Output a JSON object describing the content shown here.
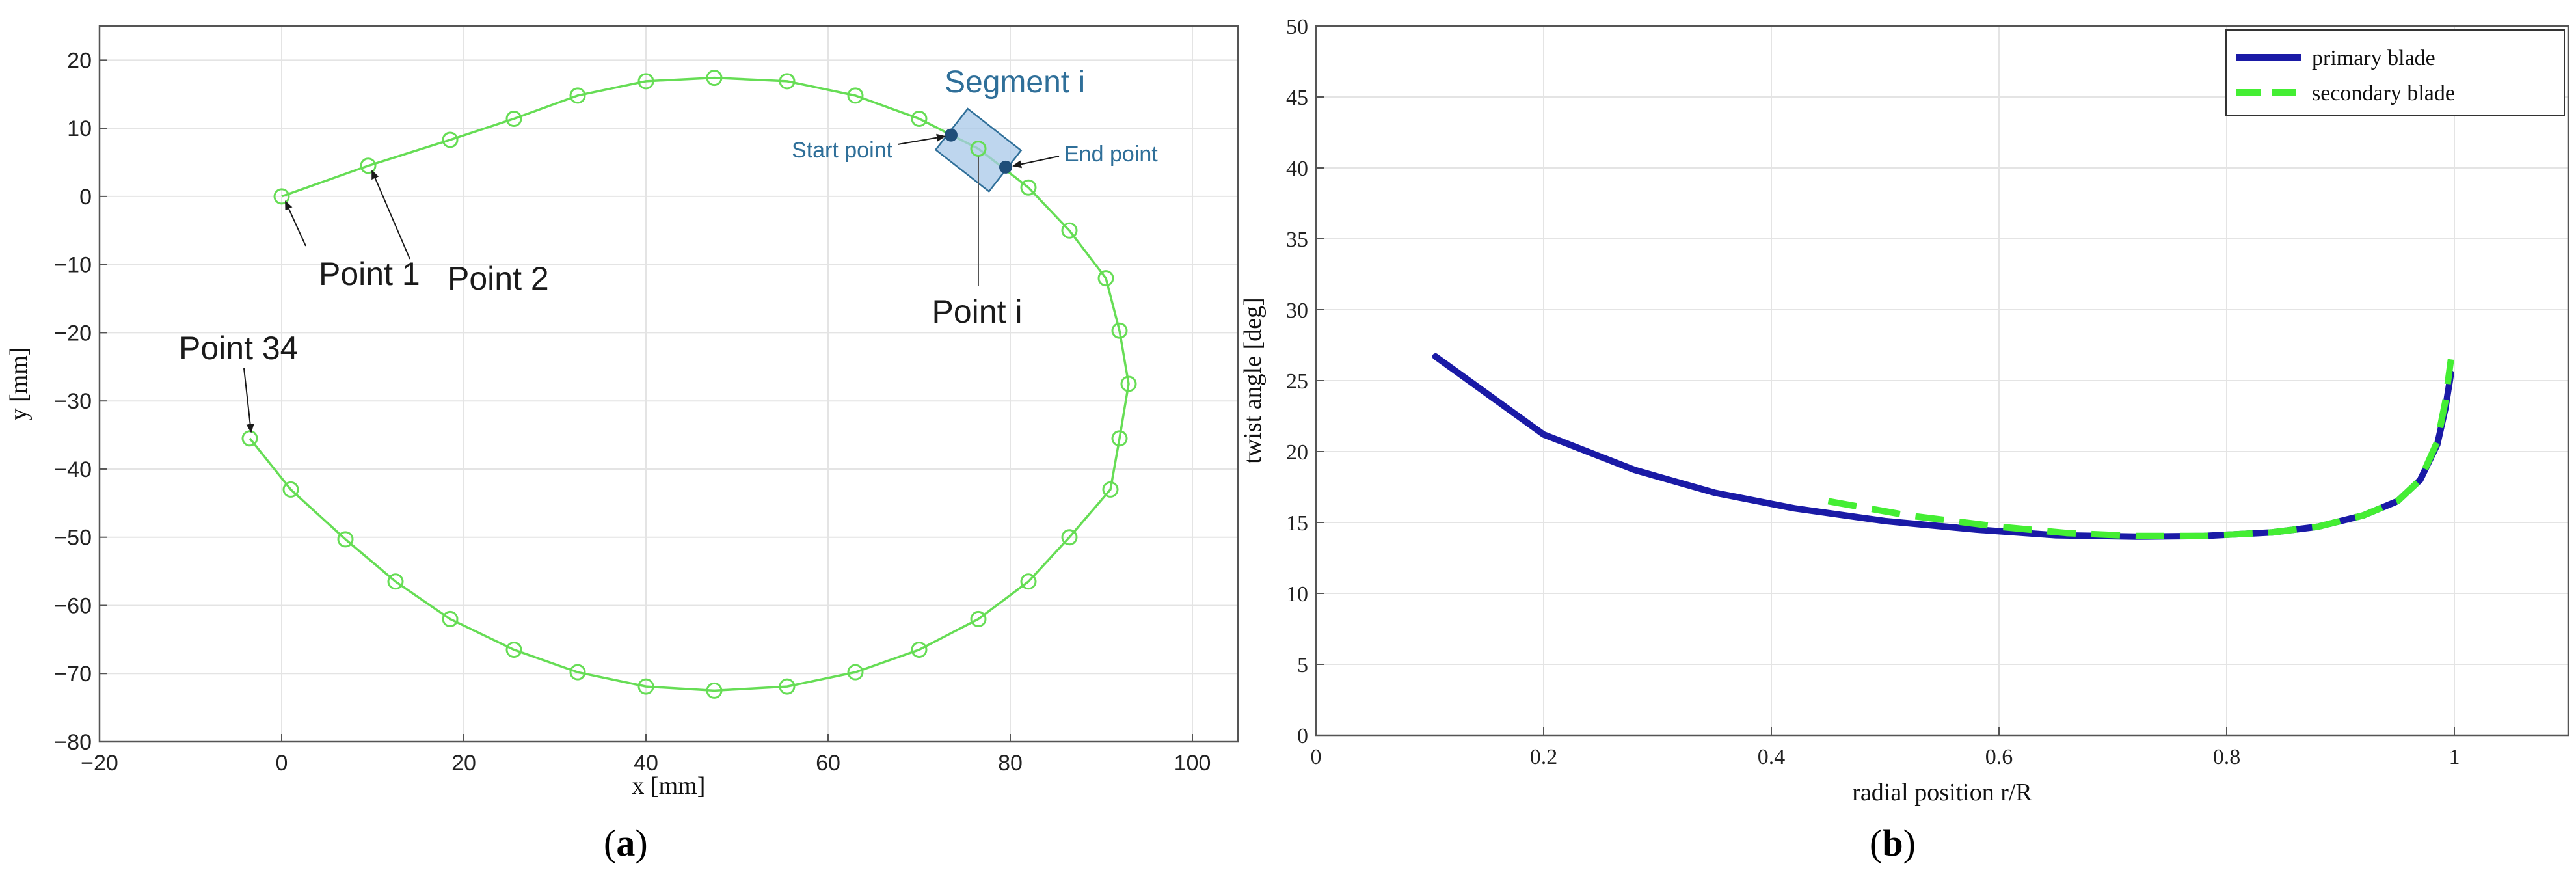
{
  "colors": {
    "curve": "#66dd55",
    "primary": "#1a1aa6",
    "secondary": "#44ee33",
    "annotation_blue": "#2f6f99",
    "segment_fill": "#a8c8e8",
    "grid": "#e4e4e4"
  },
  "panels": {
    "a": {
      "label": "a"
    },
    "b": {
      "label": "b"
    }
  },
  "chart_data": [
    {
      "type": "line",
      "panel": "a",
      "title": "",
      "xlabel": "x [mm]",
      "ylabel": "y [mm]",
      "xlim": [
        -20,
        105
      ],
      "ylim": [
        -80,
        25
      ],
      "xticks": [
        -20,
        0,
        20,
        40,
        60,
        80,
        100
      ],
      "yticks": [
        -80,
        -70,
        -60,
        -50,
        -40,
        -30,
        -20,
        -10,
        0,
        10,
        20
      ],
      "xtick_labels": [
        "−20",
        "0",
        "20",
        "40",
        "60",
        "80",
        "100"
      ],
      "ytick_labels": [
        "−80",
        "−70",
        "−60",
        "−50",
        "−40",
        "−30",
        "−20",
        "−10",
        "0",
        "10",
        "20"
      ],
      "grid": true,
      "markers": "open-circle",
      "x": [
        0,
        9.5,
        18.5,
        25.5,
        32.5,
        40,
        47.5,
        55.5,
        63,
        70,
        76.5,
        82,
        86.5,
        90.5,
        92,
        93,
        92,
        91,
        86.5,
        82,
        76.5,
        70,
        63,
        55.5,
        47.5,
        40,
        32.5,
        25.5,
        18.5,
        12.5,
        7,
        1,
        -3.5
      ],
      "y": [
        0,
        4.5,
        8.3,
        11.4,
        14.8,
        16.9,
        17.4,
        16.9,
        14.8,
        11.4,
        7,
        1.3,
        -5,
        -12,
        -19.7,
        -27.5,
        -35.5,
        -43,
        -50,
        -56.5,
        -62,
        -66.5,
        -69.8,
        -71.9,
        -72.5,
        -71.9,
        -69.8,
        -66.5,
        -62,
        -56.5,
        -50.3,
        -43,
        -35.5
      ],
      "annotations": [
        {
          "text": "Point 1",
          "x": 0,
          "y": 0
        },
        {
          "text": "Point 2",
          "x": 9.5,
          "y": 4.5
        },
        {
          "text": "Point 34",
          "x": -3.5,
          "y": -35.5
        },
        {
          "text": "Point i",
          "x": 76.5,
          "y": 7
        },
        {
          "text": "Segment i"
        },
        {
          "text": "Start point",
          "x": 73.5,
          "y": 9
        },
        {
          "text": "End point",
          "x": 79.5,
          "y": 4.3
        }
      ]
    },
    {
      "type": "line",
      "panel": "b",
      "title": "",
      "xlabel": "radial position r/R",
      "ylabel": "twist angle [deg]",
      "xlim": [
        0,
        1.1
      ],
      "ylim": [
        0,
        50
      ],
      "xticks": [
        0,
        0.2,
        0.4,
        0.6,
        0.8,
        1
      ],
      "yticks": [
        0,
        5,
        10,
        15,
        20,
        25,
        30,
        35,
        40,
        45,
        50
      ],
      "xtick_labels": [
        "0",
        "0.2",
        "0.4",
        "0.6",
        "0.8",
        "1"
      ],
      "ytick_labels": [
        "0",
        "5",
        "10",
        "15",
        "20",
        "25",
        "30",
        "35",
        "40",
        "45",
        "50"
      ],
      "grid": true,
      "legend": "top-right",
      "series": [
        {
          "name": "primary blade",
          "style": "solid",
          "x": [
            0.105,
            0.2,
            0.28,
            0.35,
            0.42,
            0.5,
            0.58,
            0.65,
            0.72,
            0.78,
            0.84,
            0.88,
            0.92,
            0.95,
            0.97,
            0.985,
            0.992,
            0.997
          ],
          "y": [
            26.7,
            21.2,
            18.7,
            17.1,
            16,
            15.1,
            14.5,
            14.1,
            14,
            14.05,
            14.3,
            14.7,
            15.5,
            16.5,
            18,
            20.5,
            23,
            25.5
          ]
        },
        {
          "name": "secondary blade",
          "style": "dashed",
          "x": [
            0.45,
            0.52,
            0.6,
            0.66,
            0.72,
            0.78,
            0.84,
            0.88,
            0.92,
            0.95,
            0.97,
            0.985,
            0.992,
            0.997
          ],
          "y": [
            16.5,
            15.5,
            14.7,
            14.25,
            14.05,
            14.05,
            14.3,
            14.7,
            15.5,
            16.5,
            18,
            20.7,
            23.5,
            26.5
          ]
        }
      ]
    }
  ]
}
